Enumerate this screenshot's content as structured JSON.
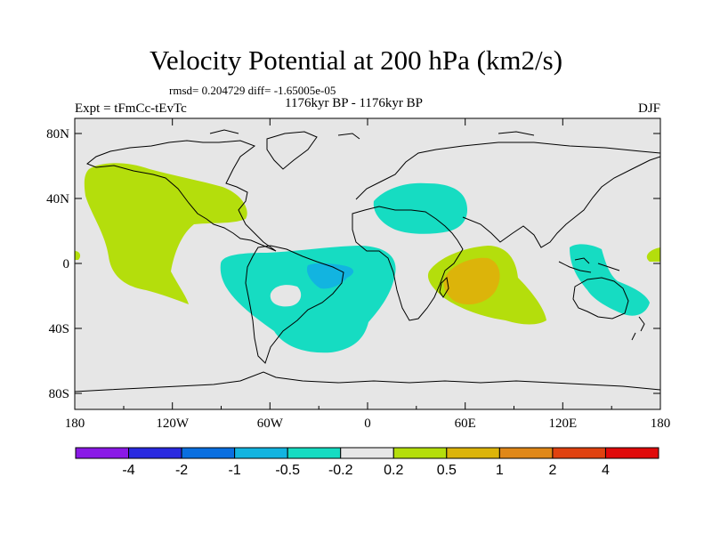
{
  "title": "Velocity Potential at 200 hPa (km2/s)",
  "stats": "rmsd= 0.204729 diff= -1.65005e-05",
  "period": "1176kyr BP - 1176kyr BP",
  "experiment": "Expt = tFmCc-tEvTc",
  "season": "DJF",
  "map": {
    "lon_ticks": [
      "180",
      "120W",
      "60W",
      "0",
      "60E",
      "120E",
      "180"
    ],
    "lat_ticks": [
      "80N",
      "40N",
      "0",
      "40S",
      "80S"
    ],
    "land_color": "#e6e6e6",
    "coast_color": "#000000"
  },
  "colorbar": {
    "colors": [
      "#8a19e6",
      "#2a2ae0",
      "#0a6fe0",
      "#12b4e0",
      "#16dcc2",
      "#e6e6e6",
      "#b4de0c",
      "#dcb40a",
      "#e08818",
      "#e04210",
      "#e00a0a"
    ],
    "labels": [
      "-4",
      "-2",
      "-1",
      "-0.5",
      "-0.2",
      "0.2",
      "0.5",
      "1",
      "2",
      "4"
    ]
  }
}
